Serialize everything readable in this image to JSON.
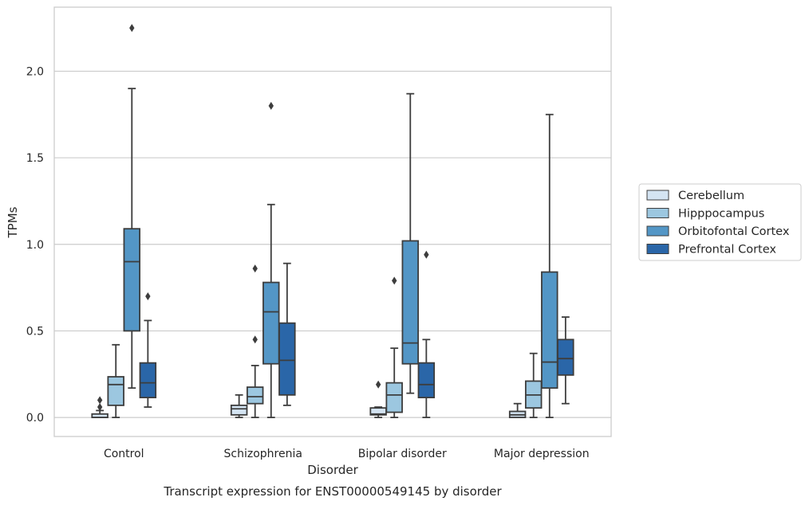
{
  "chart_data": {
    "type": "box",
    "xlabel": "Disorder",
    "ylabel": "TPMs",
    "caption": "Transcript expression for ENST00000549145 by disorder",
    "ylim": [
      -0.11,
      2.37
    ],
    "yticks": [
      "0.0",
      "0.5",
      "1.0",
      "1.5",
      "2.0"
    ],
    "grid": "horizontal",
    "legend_placement": "right",
    "categories": [
      "Control",
      "Schizophrenia",
      "Bipolar disorder",
      "Major depression"
    ],
    "series": [
      {
        "name": "Cerebellum",
        "color": "#d4e4f2",
        "boxes": [
          {
            "whislo": 0.0,
            "q1": 0.0,
            "med": 0.0,
            "q3": 0.02,
            "whishi": 0.04,
            "fliers": [
              0.06,
              0.1
            ]
          },
          {
            "whislo": 0.0,
            "q1": 0.015,
            "med": 0.05,
            "q3": 0.07,
            "whishi": 0.13,
            "fliers": []
          },
          {
            "whislo": 0.0,
            "q1": 0.015,
            "med": 0.02,
            "q3": 0.055,
            "whishi": 0.06,
            "fliers": [
              0.19
            ]
          },
          {
            "whislo": 0.0,
            "q1": 0.0,
            "med": 0.015,
            "q3": 0.035,
            "whishi": 0.08,
            "fliers": []
          }
        ]
      },
      {
        "name": "Hipppocampus",
        "color": "#9cc7e0",
        "boxes": [
          {
            "whislo": 0.0,
            "q1": 0.07,
            "med": 0.19,
            "q3": 0.235,
            "whishi": 0.42,
            "fliers": []
          },
          {
            "whislo": 0.0,
            "q1": 0.08,
            "med": 0.12,
            "q3": 0.175,
            "whishi": 0.3,
            "fliers": [
              0.45,
              0.86
            ]
          },
          {
            "whislo": 0.0,
            "q1": 0.03,
            "med": 0.13,
            "q3": 0.2,
            "whishi": 0.4,
            "fliers": [
              0.79
            ]
          },
          {
            "whislo": 0.0,
            "q1": 0.055,
            "med": 0.13,
            "q3": 0.21,
            "whishi": 0.37,
            "fliers": []
          }
        ]
      },
      {
        "name": "Orbitofontal Cortex",
        "color": "#5396c6",
        "boxes": [
          {
            "whislo": 0.17,
            "q1": 0.5,
            "med": 0.9,
            "q3": 1.09,
            "whishi": 1.9,
            "fliers": [
              2.25
            ]
          },
          {
            "whislo": 0.0,
            "q1": 0.31,
            "med": 0.61,
            "q3": 0.78,
            "whishi": 1.23,
            "fliers": [
              1.8
            ]
          },
          {
            "whislo": 0.14,
            "q1": 0.31,
            "med": 0.43,
            "q3": 1.02,
            "whishi": 1.87,
            "fliers": []
          },
          {
            "whislo": 0.0,
            "q1": 0.17,
            "med": 0.32,
            "q3": 0.84,
            "whishi": 1.75,
            "fliers": []
          }
        ]
      },
      {
        "name": "Prefrontal Cortex",
        "color": "#2a66a8",
        "boxes": [
          {
            "whislo": 0.06,
            "q1": 0.115,
            "med": 0.2,
            "q3": 0.315,
            "whishi": 0.56,
            "fliers": [
              0.7
            ]
          },
          {
            "whislo": 0.07,
            "q1": 0.13,
            "med": 0.33,
            "q3": 0.545,
            "whishi": 0.89,
            "fliers": []
          },
          {
            "whislo": 0.0,
            "q1": 0.115,
            "med": 0.19,
            "q3": 0.315,
            "whishi": 0.45,
            "fliers": [
              0.94
            ]
          },
          {
            "whislo": 0.08,
            "q1": 0.245,
            "med": 0.34,
            "q3": 0.45,
            "whishi": 0.58,
            "fliers": []
          }
        ]
      }
    ]
  }
}
